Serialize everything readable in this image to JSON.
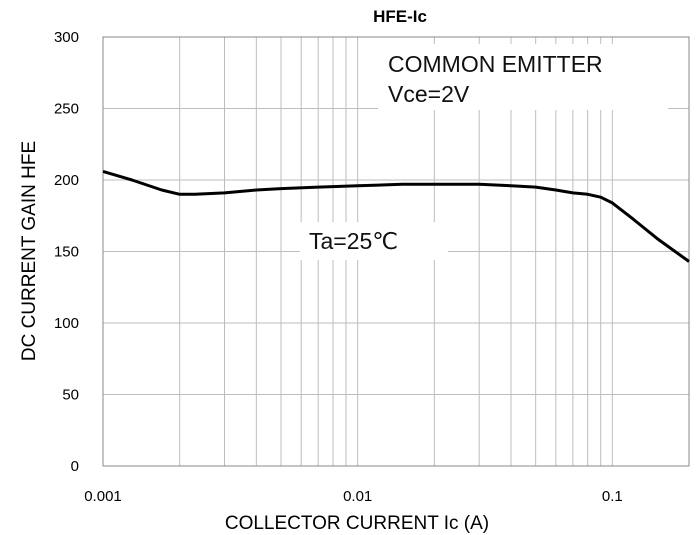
{
  "chart_data": {
    "type": "line",
    "title": "HFE-Ic",
    "xlabel": "COLLECTOR  CURRENT  Ic (A)",
    "ylabel": "DC CURRENT GAIN  HFE",
    "xscale": "log",
    "xlim": [
      0.001,
      0.2
    ],
    "ylim": [
      0,
      300
    ],
    "grid": true,
    "x_ticks": [
      0.001,
      0.01,
      0.1
    ],
    "x_tick_labels": [
      "0.001",
      "0.01",
      "0.1"
    ],
    "y_ticks": [
      0,
      50,
      100,
      150,
      200,
      250,
      300
    ],
    "y_tick_labels": [
      "0",
      "50",
      "100",
      "150",
      "200",
      "250",
      "300"
    ],
    "annotations": {
      "condition_1": "COMMON EMITTER",
      "condition_2": "Vce=2V",
      "temperature": "Ta=25℃"
    },
    "series": [
      {
        "x": [
          0.001,
          0.0013,
          0.0017,
          0.002,
          0.0023,
          0.003,
          0.004,
          0.005,
          0.007,
          0.01,
          0.015,
          0.02,
          0.03,
          0.04,
          0.05,
          0.06,
          0.07,
          0.08,
          0.09,
          0.1,
          0.12,
          0.15,
          0.2
        ],
        "y": [
          206,
          200,
          193,
          190,
          190,
          191,
          193,
          194,
          195,
          196,
          197,
          197,
          197,
          196,
          195,
          193,
          191,
          190,
          188,
          184,
          173,
          159,
          143
        ]
      }
    ]
  }
}
